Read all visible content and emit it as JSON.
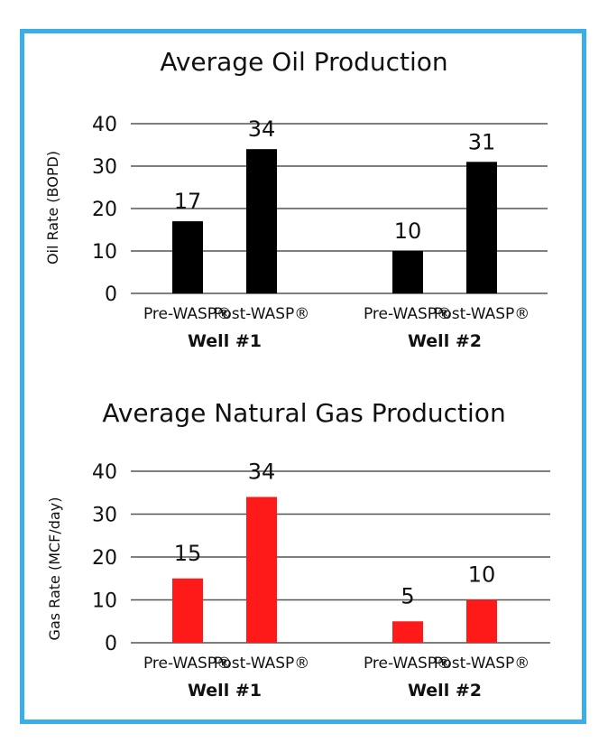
{
  "chart_data": [
    {
      "type": "bar",
      "title": "Average Oil Production",
      "ylabel": "Oil Rate (BOPD)",
      "ylim": [
        0,
        40
      ],
      "yticks": [
        0,
        10,
        20,
        30,
        40
      ],
      "grid": true,
      "groups": [
        {
          "name": "Well #1",
          "categories": [
            "Pre-WASP®",
            "Post-WASP®"
          ],
          "values": [
            17,
            34
          ]
        },
        {
          "name": "Well #2",
          "categories": [
            "Pre-WASP®",
            "Post-WASP®"
          ],
          "values": [
            10,
            31
          ]
        }
      ],
      "bar_color": "#000000"
    },
    {
      "type": "bar",
      "title": "Average Natural Gas Production",
      "ylabel": "Gas Rate (MCF/day)",
      "ylim": [
        0,
        40
      ],
      "yticks": [
        0,
        10,
        20,
        30,
        40
      ],
      "grid": true,
      "groups": [
        {
          "name": "Well #1",
          "categories": [
            "Pre-WASP®",
            "Post-WASP®"
          ],
          "values": [
            15,
            34
          ]
        },
        {
          "name": "Well #2",
          "categories": [
            "Pre-WASP®",
            "Post-WASP®"
          ],
          "values": [
            5,
            10
          ]
        }
      ],
      "bar_color": "#ff1a1a"
    }
  ],
  "frame_color": "#3aaee6"
}
